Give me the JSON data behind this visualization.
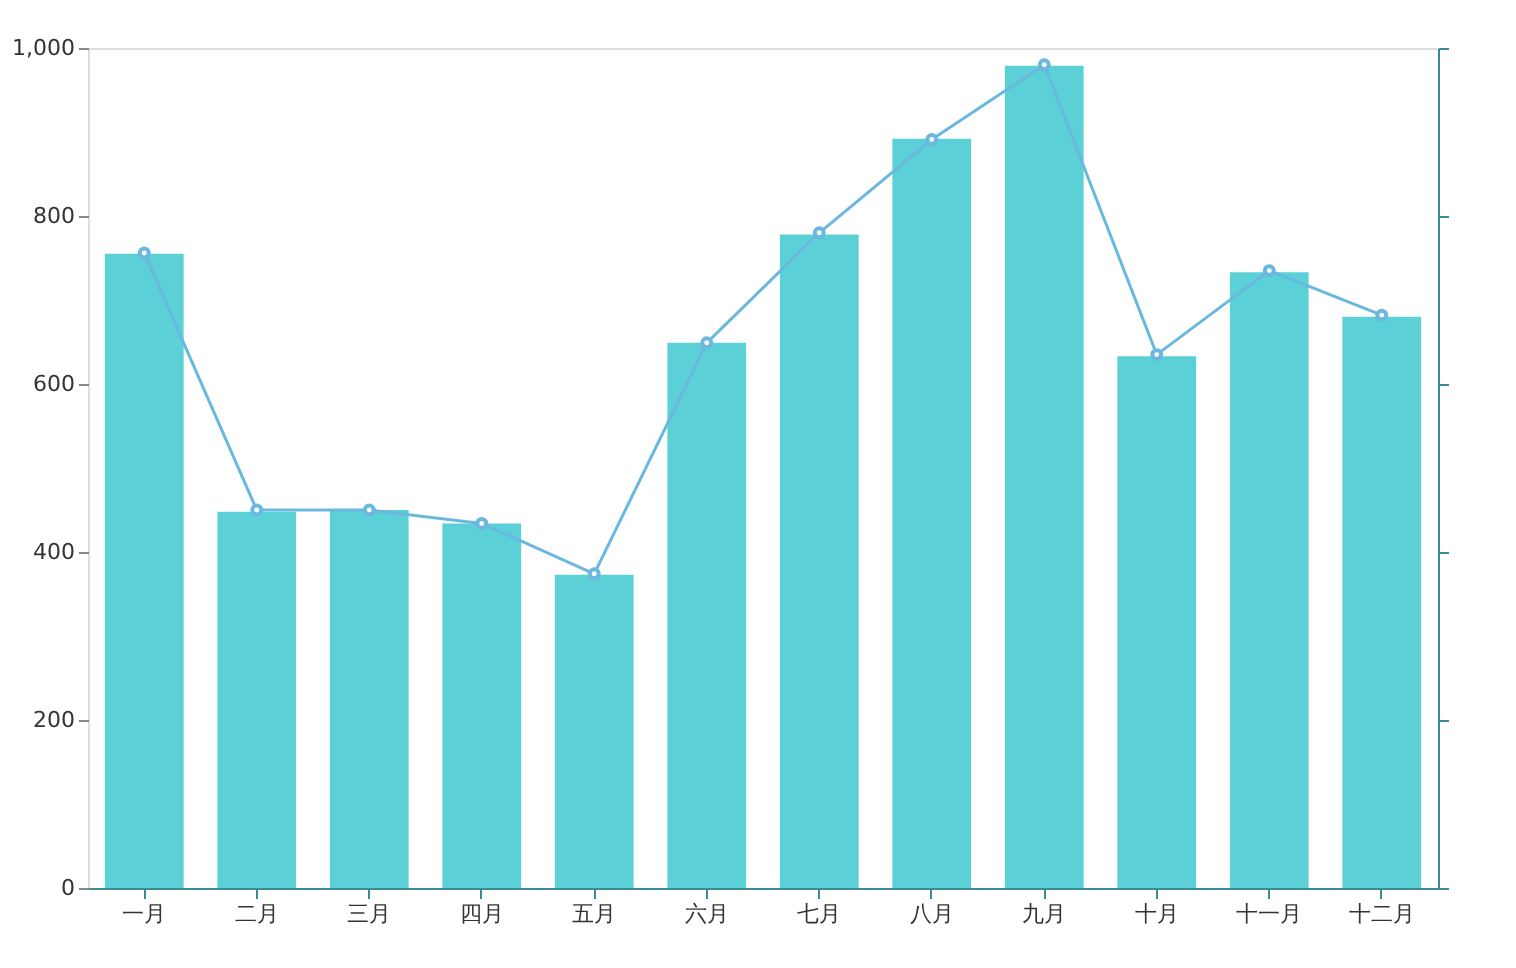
{
  "chart_data": {
    "type": "bar",
    "categories": [
      "一月",
      "二月",
      "三月",
      "四月",
      "五月",
      "六月",
      "七月",
      "八月",
      "九月",
      "十月",
      "十一月",
      "十二月"
    ],
    "series": [
      {
        "color": "#5bd0d6",
        "values": [
          755,
          448,
          450,
          434,
          373,
          649,
          778,
          892,
          979,
          633,
          733,
          680
        ]
      },
      {
        "type": "line",
        "color": "#6ab8df",
        "marker": "circle",
        "line_style": "solid",
        "values": [
          756,
          450,
          450,
          434,
          374,
          649,
          780,
          891,
          980,
          635,
          735,
          682
        ]
      }
    ],
    "ylim": [
      0,
      1000
    ],
    "yticks": [
      0,
      200,
      400,
      600,
      800,
      {
        "value": 1000,
        "label": "1,000"
      }
    ],
    "grid": false
  }
}
